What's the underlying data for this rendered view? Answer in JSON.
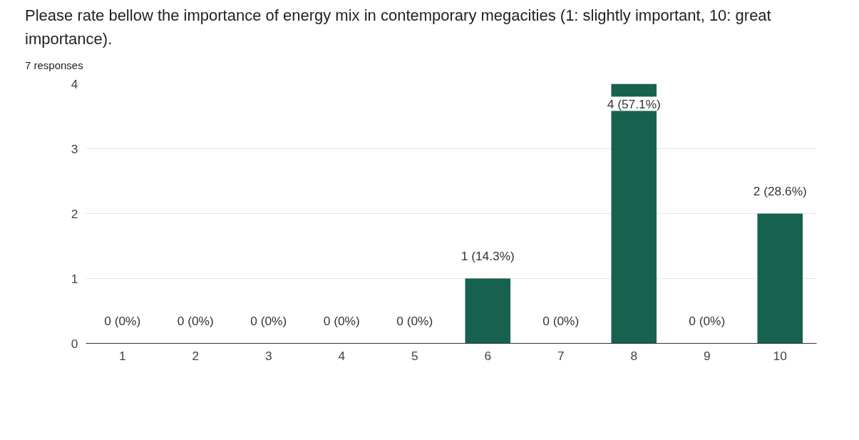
{
  "chart_data": {
    "type": "bar",
    "title": "Please rate bellow the importance of energy mix in contemporary megacities (1: slightly important, 10: great importance).",
    "subtitle": "7 responses",
    "categories": [
      "1",
      "2",
      "3",
      "4",
      "5",
      "6",
      "7",
      "8",
      "9",
      "10"
    ],
    "values": [
      0,
      0,
      0,
      0,
      0,
      1,
      0,
      4,
      0,
      2
    ],
    "value_labels": [
      "0 (0%)",
      "0 (0%)",
      "0 (0%)",
      "0 (0%)",
      "0 (0%)",
      "1 (14.3%)",
      "0 (0%)",
      "4 (57.1%)",
      "0 (0%)",
      "2 (28.6%)"
    ],
    "color": "#17614f",
    "ylim": [
      0,
      4
    ],
    "yticks": [
      0,
      1,
      2,
      3,
      4
    ],
    "grid": "y"
  }
}
